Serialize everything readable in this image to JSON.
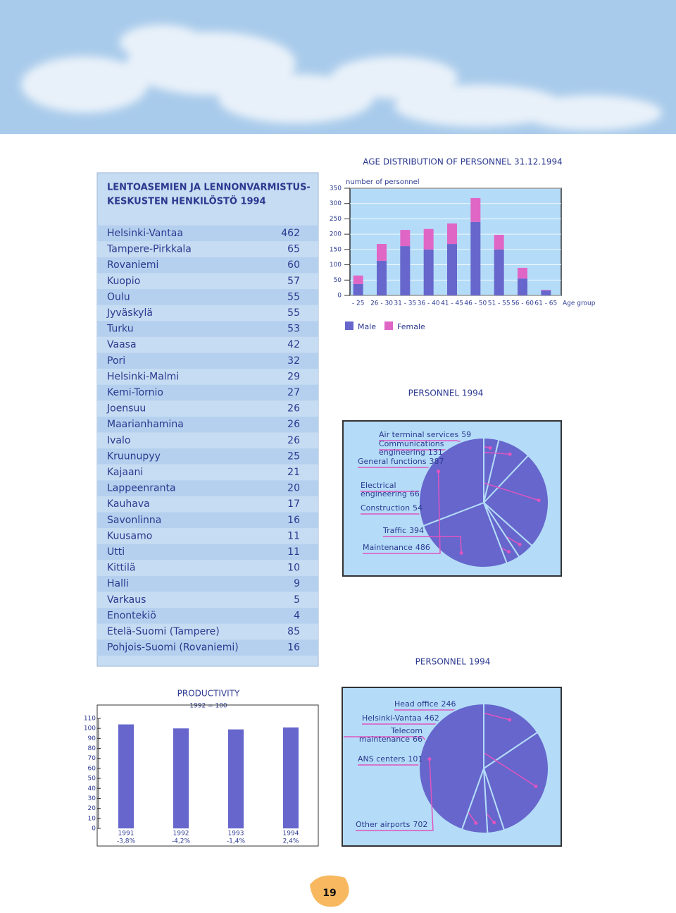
{
  "table": {
    "title": [
      "LENTOASEMIEN JA LENNONVARMISTUS-",
      "KESKUSTEN HENKILÖSTÖ 1994"
    ],
    "rows": [
      [
        "Helsinki-Vantaa",
        462
      ],
      [
        "Tampere-Pirkkala",
        65
      ],
      [
        "Rovaniemi",
        60
      ],
      [
        "Kuopio",
        57
      ],
      [
        "Oulu",
        55
      ],
      [
        "Jyväskylä",
        55
      ],
      [
        "Turku",
        53
      ],
      [
        "Vaasa",
        42
      ],
      [
        "Pori",
        32
      ],
      [
        "Helsinki-Malmi",
        29
      ],
      [
        "Kemi-Tornio",
        27
      ],
      [
        "Joensuu",
        26
      ],
      [
        "Maarianhamina",
        26
      ],
      [
        "Ivalo",
        26
      ],
      [
        "Kruunupyy",
        25
      ],
      [
        "Kajaani",
        21
      ],
      [
        "Lappeenranta",
        20
      ],
      [
        "Kauhava",
        17
      ],
      [
        "Savonlinna",
        16
      ],
      [
        "Kuusamo",
        11
      ],
      [
        "Utti",
        11
      ],
      [
        "Kittilä",
        10
      ],
      [
        "Halli",
        9
      ],
      [
        "Varkaus",
        5
      ],
      [
        "Enontekiö",
        4
      ],
      [
        "Etelä-Suomi (Tampere)",
        85
      ],
      [
        "Pohjois-Suomi (Rovaniemi)",
        16
      ]
    ]
  },
  "chart_data": [
    {
      "type": "stacked_bar",
      "title": "AGE DISTRIBUTION OF PERSONNEL 31.12.1994",
      "y_label": "number of personnel",
      "x_label": "Age group",
      "categories": [
        "- 25",
        "26 - 30",
        "31 - 35",
        "36 - 40",
        "41 - 45",
        "46 - 50",
        "51 - 55",
        "56 - 60",
        "61 - 65"
      ],
      "series": [
        {
          "name": "Male",
          "color": "#6666cc",
          "values": [
            37,
            113,
            161,
            150,
            168,
            240,
            150,
            55,
            16
          ]
        },
        {
          "name": "Female",
          "color": "#e066c6",
          "values": [
            28,
            55,
            53,
            67,
            67,
            78,
            48,
            35,
            2
          ]
        }
      ],
      "ylim": [
        0,
        350
      ],
      "yticks": [
        0,
        50,
        100,
        150,
        200,
        250,
        300,
        350
      ],
      "grid": true
    },
    {
      "type": "pie",
      "title": "PERSONNEL 1994",
      "color": "#6666cc",
      "categories": [
        "Air terminal services",
        "Communications engineering",
        "General functions",
        "Electrical engineering",
        "Construction",
        "Traffic",
        "Maintenance"
      ],
      "values": [
        59,
        131,
        387,
        66,
        54,
        394,
        486
      ]
    },
    {
      "type": "bar",
      "title": "PRODUCTIVITY",
      "subtitle": "1992 = 100",
      "color": "#6666cc",
      "categories": [
        "1991",
        "1992",
        "1993",
        "1994"
      ],
      "values": [
        104,
        100,
        99,
        101
      ],
      "annotations": [
        "-3,8%",
        "-4,2%",
        "-1,4%",
        "2,4%"
      ],
      "ylim": [
        0,
        110
      ],
      "yticks": [
        0,
        10,
        20,
        30,
        40,
        50,
        60,
        70,
        80,
        90,
        100,
        110
      ]
    },
    {
      "type": "pie",
      "title": "PERSONNEL 1994",
      "color": "#6666cc",
      "categories": [
        "Head office",
        "Helsinki-Vantaa",
        "Telecom maintenance",
        "ANS centers",
        "Other airports"
      ],
      "values": [
        246,
        462,
        66,
        101,
        702
      ]
    }
  ],
  "page_number": "19"
}
